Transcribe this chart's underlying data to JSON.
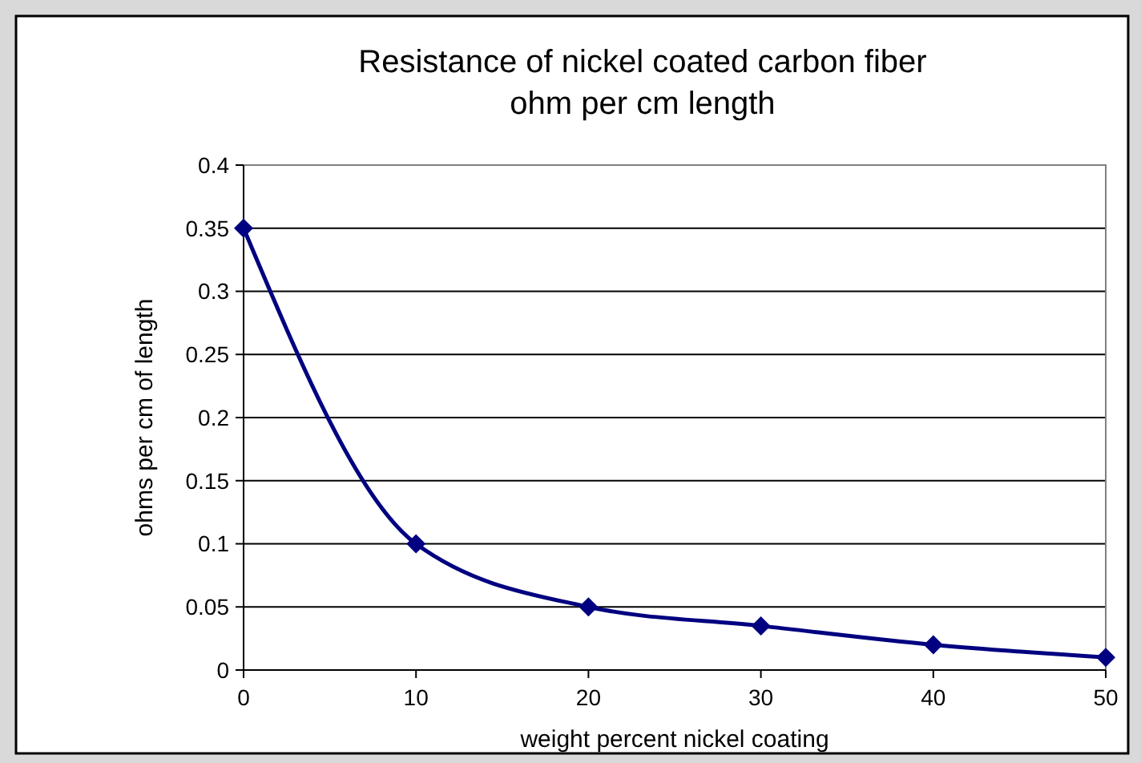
{
  "chart_data": {
    "type": "line",
    "title": "Resistance of nickel coated carbon fiber",
    "subtitle": "ohm per cm length",
    "xlabel": "weight percent nickel coating",
    "ylabel": "ohms per cm of length",
    "x": [
      0,
      10,
      20,
      30,
      40,
      50
    ],
    "series": [
      {
        "color": "#000080",
        "values": [
          0.35,
          0.1,
          0.05,
          0.035,
          0.02,
          0.01
        ]
      }
    ],
    "xlim": [
      0,
      50
    ],
    "xticks": [
      0,
      10,
      20,
      30,
      40,
      50
    ],
    "ylim": [
      0,
      0.4
    ],
    "yticks": [
      0,
      0.05,
      0.1,
      0.15,
      0.2,
      0.25,
      0.3,
      0.35,
      0.4
    ],
    "grid": "y",
    "marker": "diamond",
    "line_style": "solid"
  }
}
